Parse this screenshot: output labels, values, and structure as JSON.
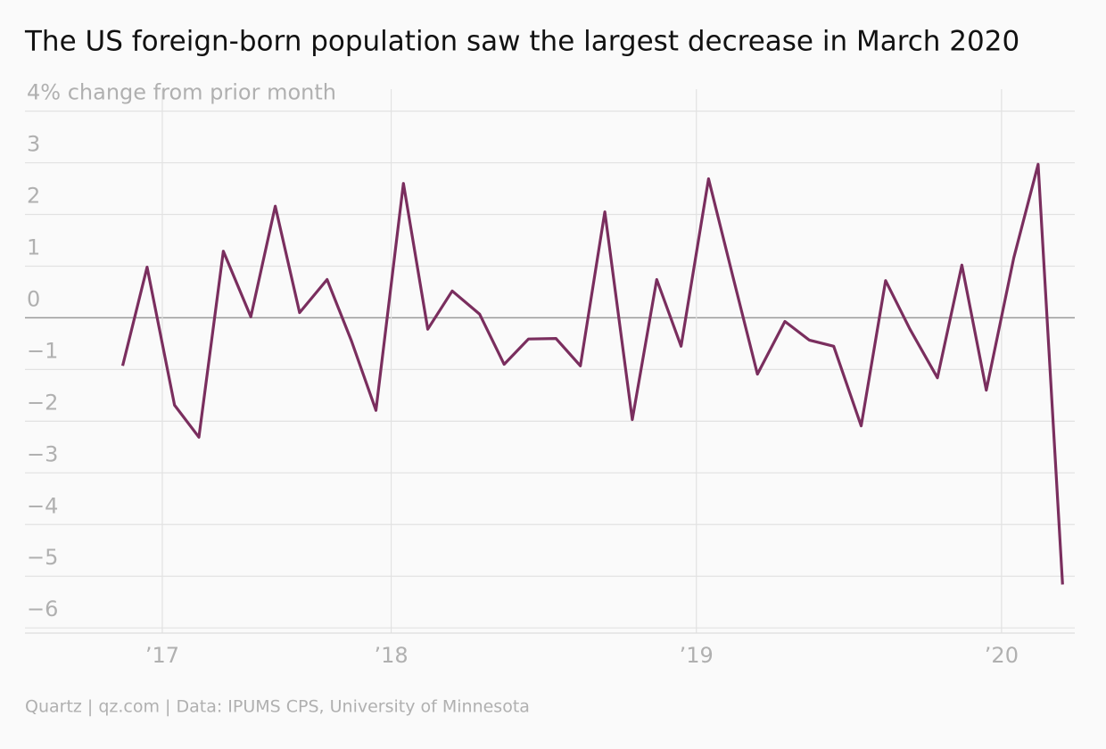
{
  "chart_data": {
    "type": "line",
    "title": "The US foreign-born population saw the largest decrease in March 2020",
    "y_label": "% change from prior month",
    "source": "Quartz | qz.com | Data: IPUMS CPS, University of Minnesota",
    "x": [
      2017.12,
      2017.2,
      2017.29,
      2017.37,
      2017.45,
      2017.54,
      2017.62,
      2017.7,
      2017.79,
      2017.87,
      2017.95,
      2018.04,
      2018.12,
      2018.2,
      2018.29,
      2018.37,
      2018.45,
      2018.54,
      2018.62,
      2018.7,
      2018.79,
      2018.87,
      2018.95,
      2019.04,
      2019.12,
      2019.2,
      2019.29,
      2019.37,
      2019.45,
      2019.54,
      2019.62,
      2019.7,
      2019.79,
      2019.87,
      2019.95,
      2020.04,
      2020.12,
      2020.2
    ],
    "series": [
      {
        "name": "Foreign-born population",
        "color": "#7a2e5e",
        "values": [
          -0.93,
          0.98,
          -1.69,
          -2.31,
          1.29,
          0.02,
          2.16,
          0.1,
          0.74,
          -0.45,
          -1.79,
          2.6,
          -0.22,
          0.52,
          0.07,
          -0.9,
          -0.41,
          -0.4,
          -0.93,
          2.05,
          -1.97,
          0.74,
          -0.55,
          2.69,
          0.79,
          -1.09,
          -0.07,
          -0.43,
          -0.55,
          -2.09,
          0.72,
          -0.22,
          -1.16,
          1.02,
          -1.4,
          1.16,
          2.97,
          -5.16
        ]
      }
    ],
    "xlim": [
      2016.8,
      2020.24
    ],
    "xticks": [
      {
        "value": 2017.25,
        "label": "’17"
      },
      {
        "value": 2018,
        "label": "’18"
      },
      {
        "value": 2019,
        "label": "’19"
      },
      {
        "value": 2020,
        "label": "’20"
      }
    ],
    "ylim": [
      -6.1,
      4.2
    ],
    "yticks": [
      4,
      3,
      2,
      1,
      0,
      {
        "value": -1,
        "label": "−1"
      },
      {
        "value": -2,
        "label": "−2"
      },
      {
        "value": -3,
        "label": "−3"
      },
      {
        "value": -4,
        "label": "−4"
      },
      {
        "value": -5,
        "label": "−5"
      },
      {
        "value": -6,
        "label": "−6"
      }
    ],
    "grid": true
  }
}
